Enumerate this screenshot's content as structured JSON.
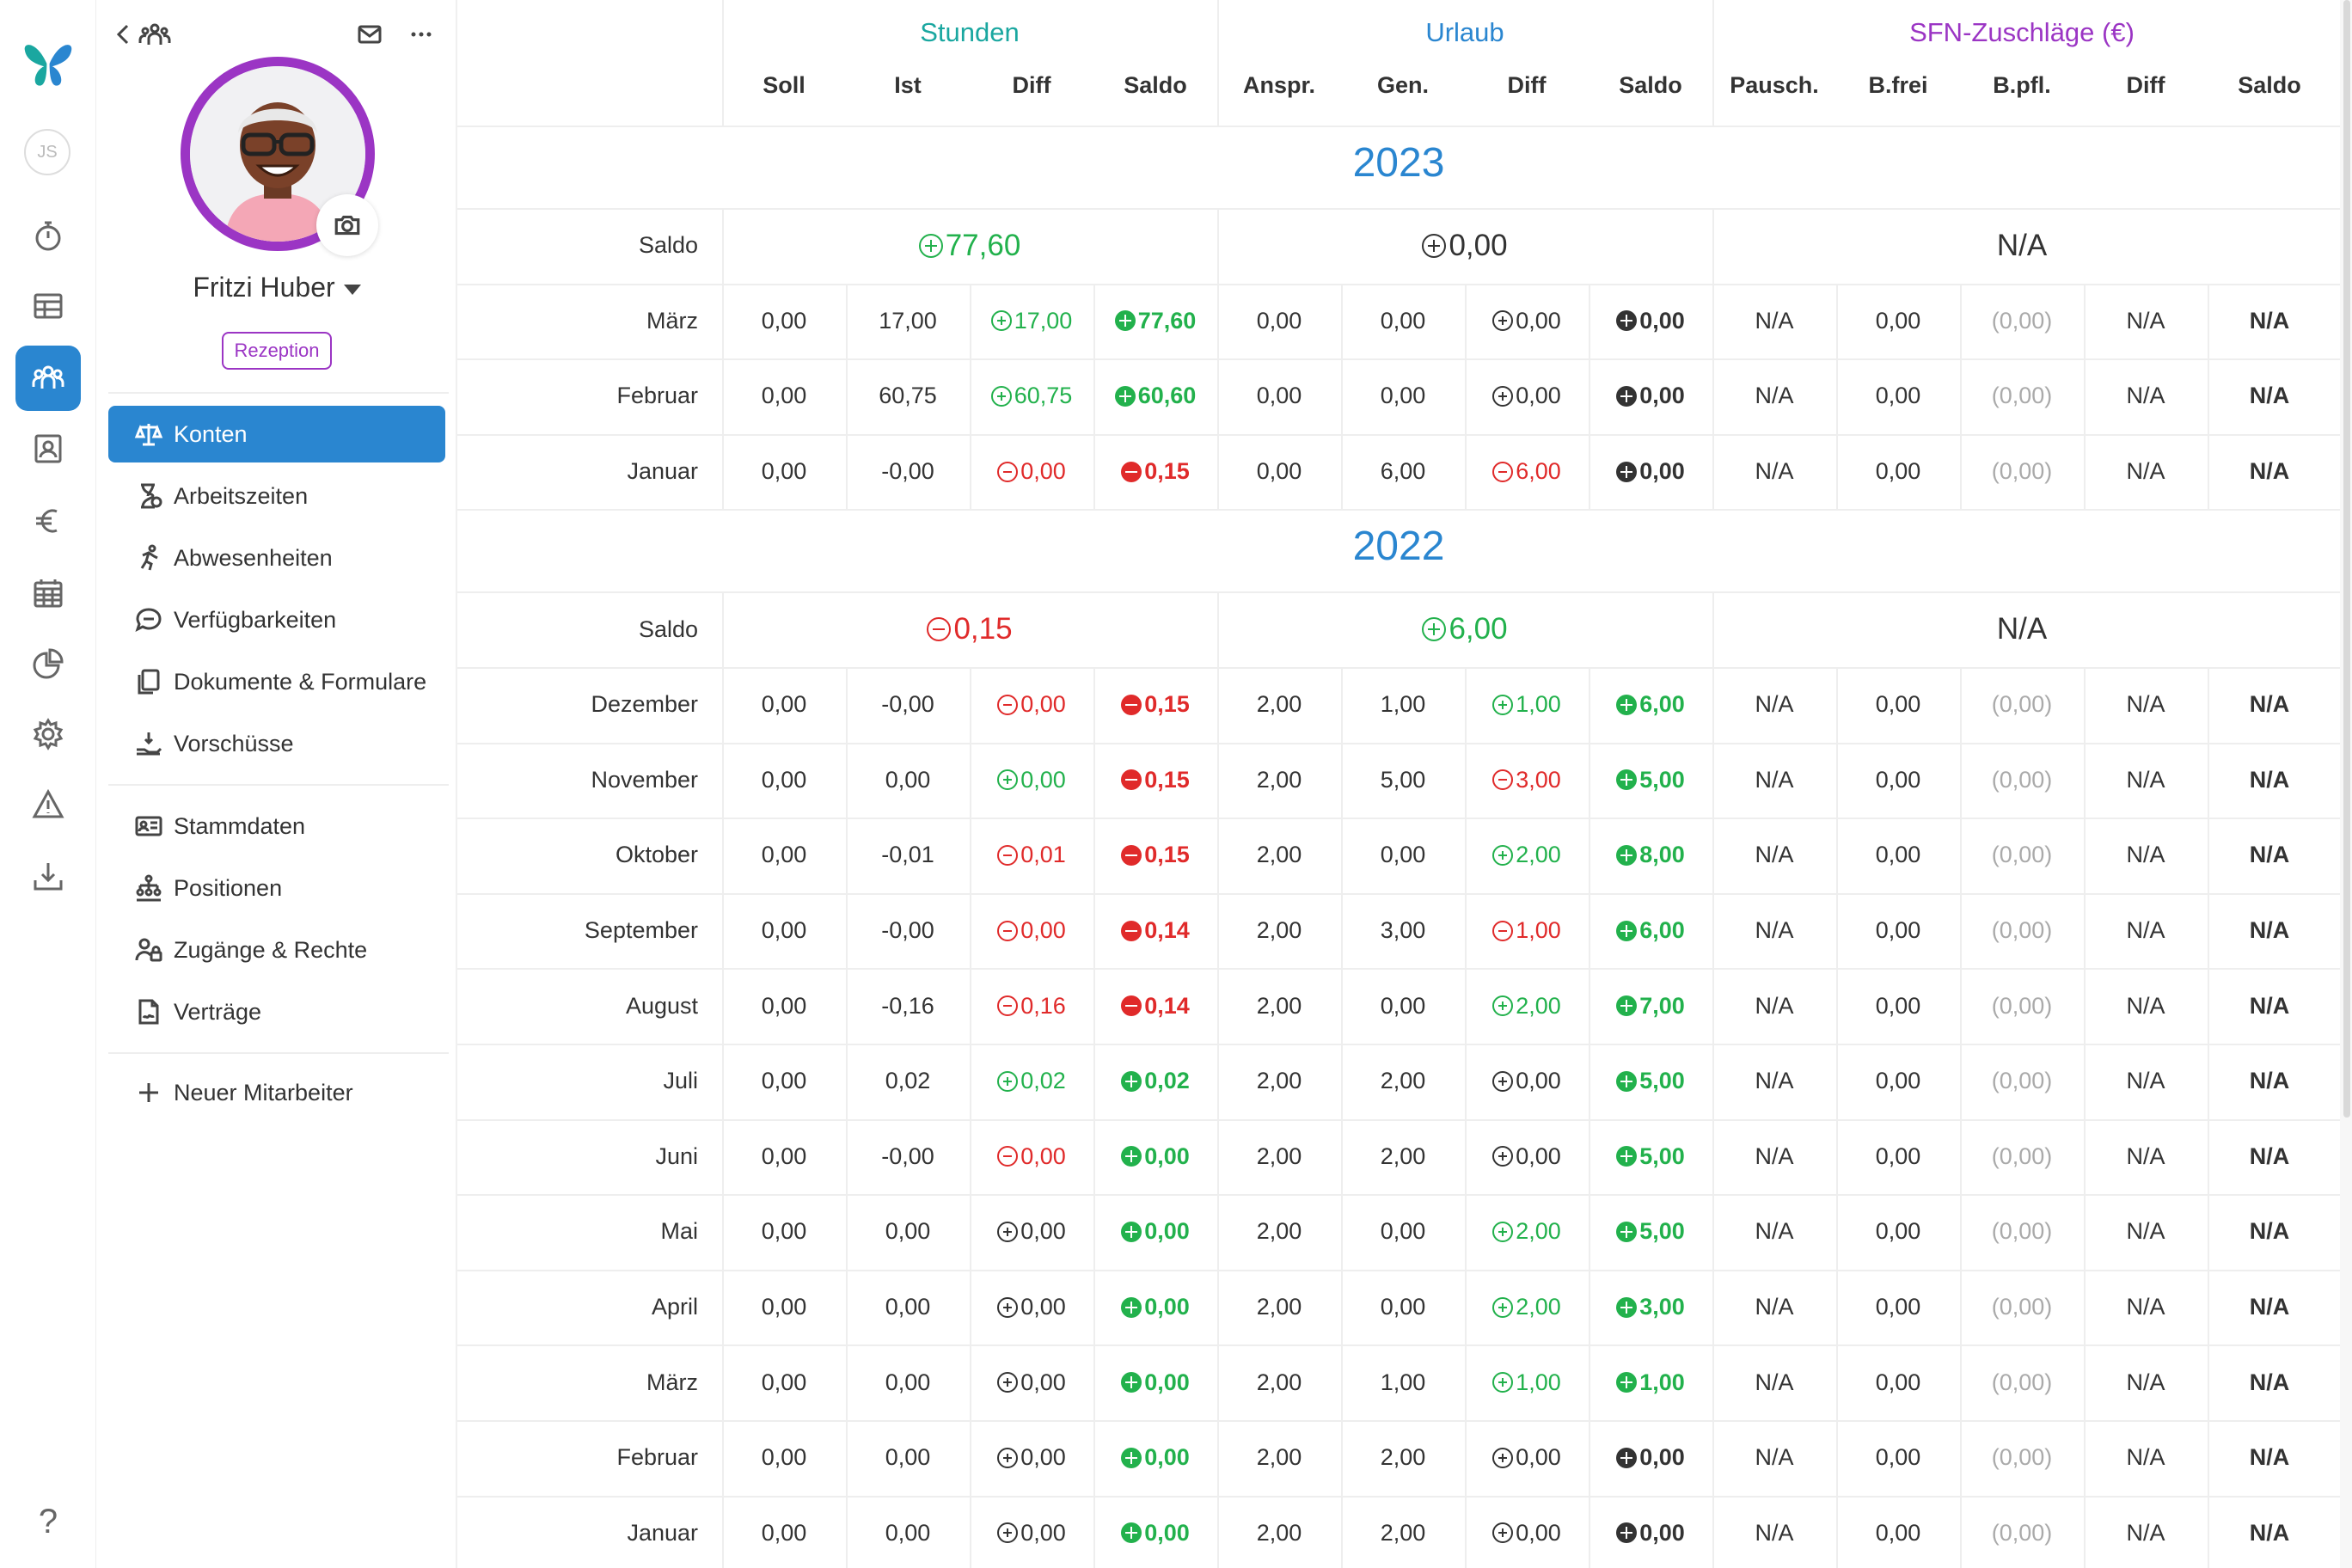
{
  "rail": {
    "user_initials": "JS",
    "items": [
      {
        "icon": "butterfly-logo-icon"
      },
      {
        "icon": "stopwatch-icon"
      },
      {
        "icon": "table-icon"
      },
      {
        "icon": "team-icon"
      },
      {
        "icon": "contact-card-icon"
      },
      {
        "icon": "euro-icon"
      },
      {
        "icon": "calendar-icon"
      },
      {
        "icon": "pie-chart-icon"
      },
      {
        "icon": "gear-icon"
      },
      {
        "icon": "warning-icon"
      },
      {
        "icon": "download-icon"
      },
      {
        "icon": "help-icon"
      }
    ],
    "help_label": "?"
  },
  "sidebar": {
    "user_name": "Fritzi Huber",
    "role_badge": "Rezeption",
    "nav_primary": [
      {
        "label": "Konten",
        "icon": "scale-icon"
      },
      {
        "label": "Arbeitszeiten",
        "icon": "hourglass-icon"
      },
      {
        "label": "Abwesenheiten",
        "icon": "running-person-icon"
      },
      {
        "label": "Verfügbarkeiten",
        "icon": "chat-bubble-icon"
      },
      {
        "label": "Dokumente & Formulare",
        "icon": "documents-icon"
      },
      {
        "label": "Vorschüsse",
        "icon": "hand-coin-icon"
      }
    ],
    "nav_secondary": [
      {
        "label": "Stammdaten",
        "icon": "id-card-icon"
      },
      {
        "label": "Positionen",
        "icon": "org-chart-icon"
      },
      {
        "label": "Zugänge & Rechte",
        "icon": "user-lock-icon"
      },
      {
        "label": "Verträge",
        "icon": "contract-icon"
      }
    ],
    "new_employee": "Neuer Mitarbeiter"
  },
  "table": {
    "groups": [
      {
        "label": "Stunden",
        "color": "#1aa7a0"
      },
      {
        "label": "Urlaub",
        "color": "#2a86d0"
      },
      {
        "label": "SFN-Zuschläge (€)",
        "color": "#9b35c4"
      }
    ],
    "columns": [
      "Soll",
      "Ist",
      "Diff",
      "Saldo",
      "Anspr.",
      "Gen.",
      "Diff",
      "Saldo",
      "Pausch.",
      "B.frei",
      "B.pfl.",
      "Diff",
      "Saldo"
    ],
    "years": [
      {
        "year": "2023",
        "saldo_label": "Saldo",
        "saldo": {
          "stunden": {
            "value": "77,60",
            "sign": "plus",
            "tone": "pos"
          },
          "urlaub": {
            "value": "0,00",
            "sign": "plus",
            "tone": "neu"
          },
          "sfn": {
            "value": "N/A"
          }
        },
        "months": [
          {
            "month": "März",
            "soll": "0,00",
            "ist": "17,00",
            "diff": {
              "v": "17,00",
              "s": "plus",
              "t": "pos"
            },
            "saldo": {
              "v": "77,60",
              "s": "plus",
              "t": "pos"
            },
            "anspr": "0,00",
            "gen": "0,00",
            "udiff": {
              "v": "0,00",
              "s": "plus",
              "t": "neu"
            },
            "usaldo": {
              "v": "0,00",
              "s": "plus",
              "t": "neu"
            },
            "pausch": "N/A",
            "bfrei": "0,00",
            "bpfl": "(0,00)",
            "sdiff": "N/A",
            "ssaldo": "N/A"
          },
          {
            "month": "Februar",
            "soll": "0,00",
            "ist": "60,75",
            "diff": {
              "v": "60,75",
              "s": "plus",
              "t": "pos"
            },
            "saldo": {
              "v": "60,60",
              "s": "plus",
              "t": "pos"
            },
            "anspr": "0,00",
            "gen": "0,00",
            "udiff": {
              "v": "0,00",
              "s": "plus",
              "t": "neu"
            },
            "usaldo": {
              "v": "0,00",
              "s": "plus",
              "t": "neu"
            },
            "pausch": "N/A",
            "bfrei": "0,00",
            "bpfl": "(0,00)",
            "sdiff": "N/A",
            "ssaldo": "N/A"
          },
          {
            "month": "Januar",
            "soll": "0,00",
            "ist": "-0,00",
            "diff": {
              "v": "0,00",
              "s": "minus",
              "t": "neg"
            },
            "saldo": {
              "v": "0,15",
              "s": "minus",
              "t": "neg"
            },
            "anspr": "0,00",
            "gen": "6,00",
            "udiff": {
              "v": "6,00",
              "s": "minus",
              "t": "neg"
            },
            "usaldo": {
              "v": "0,00",
              "s": "plus",
              "t": "neu"
            },
            "pausch": "N/A",
            "bfrei": "0,00",
            "bpfl": "(0,00)",
            "sdiff": "N/A",
            "ssaldo": "N/A"
          }
        ]
      },
      {
        "year": "2022",
        "saldo_label": "Saldo",
        "saldo": {
          "stunden": {
            "value": "0,15",
            "sign": "minus",
            "tone": "neg"
          },
          "urlaub": {
            "value": "6,00",
            "sign": "plus",
            "tone": "pos"
          },
          "sfn": {
            "value": "N/A"
          }
        },
        "months": [
          {
            "month": "Dezember",
            "soll": "0,00",
            "ist": "-0,00",
            "diff": {
              "v": "0,00",
              "s": "minus",
              "t": "neg"
            },
            "saldo": {
              "v": "0,15",
              "s": "minus",
              "t": "neg"
            },
            "anspr": "2,00",
            "gen": "1,00",
            "udiff": {
              "v": "1,00",
              "s": "plus",
              "t": "pos"
            },
            "usaldo": {
              "v": "6,00",
              "s": "plus",
              "t": "pos"
            },
            "pausch": "N/A",
            "bfrei": "0,00",
            "bpfl": "(0,00)",
            "sdiff": "N/A",
            "ssaldo": "N/A"
          },
          {
            "month": "November",
            "soll": "0,00",
            "ist": "0,00",
            "diff": {
              "v": "0,00",
              "s": "plus",
              "t": "pos"
            },
            "saldo": {
              "v": "0,15",
              "s": "minus",
              "t": "neg"
            },
            "anspr": "2,00",
            "gen": "5,00",
            "udiff": {
              "v": "3,00",
              "s": "minus",
              "t": "neg"
            },
            "usaldo": {
              "v": "5,00",
              "s": "plus",
              "t": "pos"
            },
            "pausch": "N/A",
            "bfrei": "0,00",
            "bpfl": "(0,00)",
            "sdiff": "N/A",
            "ssaldo": "N/A"
          },
          {
            "month": "Oktober",
            "soll": "0,00",
            "ist": "-0,01",
            "diff": {
              "v": "0,01",
              "s": "minus",
              "t": "neg"
            },
            "saldo": {
              "v": "0,15",
              "s": "minus",
              "t": "neg"
            },
            "anspr": "2,00",
            "gen": "0,00",
            "udiff": {
              "v": "2,00",
              "s": "plus",
              "t": "pos"
            },
            "usaldo": {
              "v": "8,00",
              "s": "plus",
              "t": "pos"
            },
            "pausch": "N/A",
            "bfrei": "0,00",
            "bpfl": "(0,00)",
            "sdiff": "N/A",
            "ssaldo": "N/A"
          },
          {
            "month": "September",
            "soll": "0,00",
            "ist": "-0,00",
            "diff": {
              "v": "0,00",
              "s": "minus",
              "t": "neg"
            },
            "saldo": {
              "v": "0,14",
              "s": "minus",
              "t": "neg"
            },
            "anspr": "2,00",
            "gen": "3,00",
            "udiff": {
              "v": "1,00",
              "s": "minus",
              "t": "neg"
            },
            "usaldo": {
              "v": "6,00",
              "s": "plus",
              "t": "pos"
            },
            "pausch": "N/A",
            "bfrei": "0,00",
            "bpfl": "(0,00)",
            "sdiff": "N/A",
            "ssaldo": "N/A"
          },
          {
            "month": "August",
            "soll": "0,00",
            "ist": "-0,16",
            "diff": {
              "v": "0,16",
              "s": "minus",
              "t": "neg"
            },
            "saldo": {
              "v": "0,14",
              "s": "minus",
              "t": "neg"
            },
            "anspr": "2,00",
            "gen": "0,00",
            "udiff": {
              "v": "2,00",
              "s": "plus",
              "t": "pos"
            },
            "usaldo": {
              "v": "7,00",
              "s": "plus",
              "t": "pos"
            },
            "pausch": "N/A",
            "bfrei": "0,00",
            "bpfl": "(0,00)",
            "sdiff": "N/A",
            "ssaldo": "N/A"
          },
          {
            "month": "Juli",
            "soll": "0,00",
            "ist": "0,02",
            "diff": {
              "v": "0,02",
              "s": "plus",
              "t": "pos"
            },
            "saldo": {
              "v": "0,02",
              "s": "plus",
              "t": "pos"
            },
            "anspr": "2,00",
            "gen": "2,00",
            "udiff": {
              "v": "0,00",
              "s": "plus",
              "t": "neu"
            },
            "usaldo": {
              "v": "5,00",
              "s": "plus",
              "t": "pos"
            },
            "pausch": "N/A",
            "bfrei": "0,00",
            "bpfl": "(0,00)",
            "sdiff": "N/A",
            "ssaldo": "N/A"
          },
          {
            "month": "Juni",
            "soll": "0,00",
            "ist": "-0,00",
            "diff": {
              "v": "0,00",
              "s": "minus",
              "t": "neg"
            },
            "saldo": {
              "v": "0,00",
              "s": "plus",
              "t": "pos"
            },
            "anspr": "2,00",
            "gen": "2,00",
            "udiff": {
              "v": "0,00",
              "s": "plus",
              "t": "neu"
            },
            "usaldo": {
              "v": "5,00",
              "s": "plus",
              "t": "pos"
            },
            "pausch": "N/A",
            "bfrei": "0,00",
            "bpfl": "(0,00)",
            "sdiff": "N/A",
            "ssaldo": "N/A"
          },
          {
            "month": "Mai",
            "soll": "0,00",
            "ist": "0,00",
            "diff": {
              "v": "0,00",
              "s": "plus",
              "t": "neu"
            },
            "saldo": {
              "v": "0,00",
              "s": "plus",
              "t": "pos"
            },
            "anspr": "2,00",
            "gen": "0,00",
            "udiff": {
              "v": "2,00",
              "s": "plus",
              "t": "pos"
            },
            "usaldo": {
              "v": "5,00",
              "s": "plus",
              "t": "pos"
            },
            "pausch": "N/A",
            "bfrei": "0,00",
            "bpfl": "(0,00)",
            "sdiff": "N/A",
            "ssaldo": "N/A"
          },
          {
            "month": "April",
            "soll": "0,00",
            "ist": "0,00",
            "diff": {
              "v": "0,00",
              "s": "plus",
              "t": "neu"
            },
            "saldo": {
              "v": "0,00",
              "s": "plus",
              "t": "pos"
            },
            "anspr": "2,00",
            "gen": "0,00",
            "udiff": {
              "v": "2,00",
              "s": "plus",
              "t": "pos"
            },
            "usaldo": {
              "v": "3,00",
              "s": "plus",
              "t": "pos"
            },
            "pausch": "N/A",
            "bfrei": "0,00",
            "bpfl": "(0,00)",
            "sdiff": "N/A",
            "ssaldo": "N/A"
          },
          {
            "month": "März",
            "soll": "0,00",
            "ist": "0,00",
            "diff": {
              "v": "0,00",
              "s": "plus",
              "t": "neu"
            },
            "saldo": {
              "v": "0,00",
              "s": "plus",
              "t": "pos"
            },
            "anspr": "2,00",
            "gen": "1,00",
            "udiff": {
              "v": "1,00",
              "s": "plus",
              "t": "pos"
            },
            "usaldo": {
              "v": "1,00",
              "s": "plus",
              "t": "pos"
            },
            "pausch": "N/A",
            "bfrei": "0,00",
            "bpfl": "(0,00)",
            "sdiff": "N/A",
            "ssaldo": "N/A"
          },
          {
            "month": "Februar",
            "soll": "0,00",
            "ist": "0,00",
            "diff": {
              "v": "0,00",
              "s": "plus",
              "t": "neu"
            },
            "saldo": {
              "v": "0,00",
              "s": "plus",
              "t": "pos"
            },
            "anspr": "2,00",
            "gen": "2,00",
            "udiff": {
              "v": "0,00",
              "s": "plus",
              "t": "neu"
            },
            "usaldo": {
              "v": "0,00",
              "s": "plus",
              "t": "neu"
            },
            "pausch": "N/A",
            "bfrei": "0,00",
            "bpfl": "(0,00)",
            "sdiff": "N/A",
            "ssaldo": "N/A"
          },
          {
            "month": "Januar",
            "soll": "0,00",
            "ist": "0,00",
            "diff": {
              "v": "0,00",
              "s": "plus",
              "t": "neu"
            },
            "saldo": {
              "v": "0,00",
              "s": "plus",
              "t": "pos"
            },
            "anspr": "2,00",
            "gen": "2,00",
            "udiff": {
              "v": "0,00",
              "s": "plus",
              "t": "neu"
            },
            "usaldo": {
              "v": "0,00",
              "s": "plus",
              "t": "neu"
            },
            "pausch": "N/A",
            "bfrei": "0,00",
            "bpfl": "(0,00)",
            "sdiff": "N/A",
            "ssaldo": "N/A"
          }
        ]
      }
    ]
  }
}
